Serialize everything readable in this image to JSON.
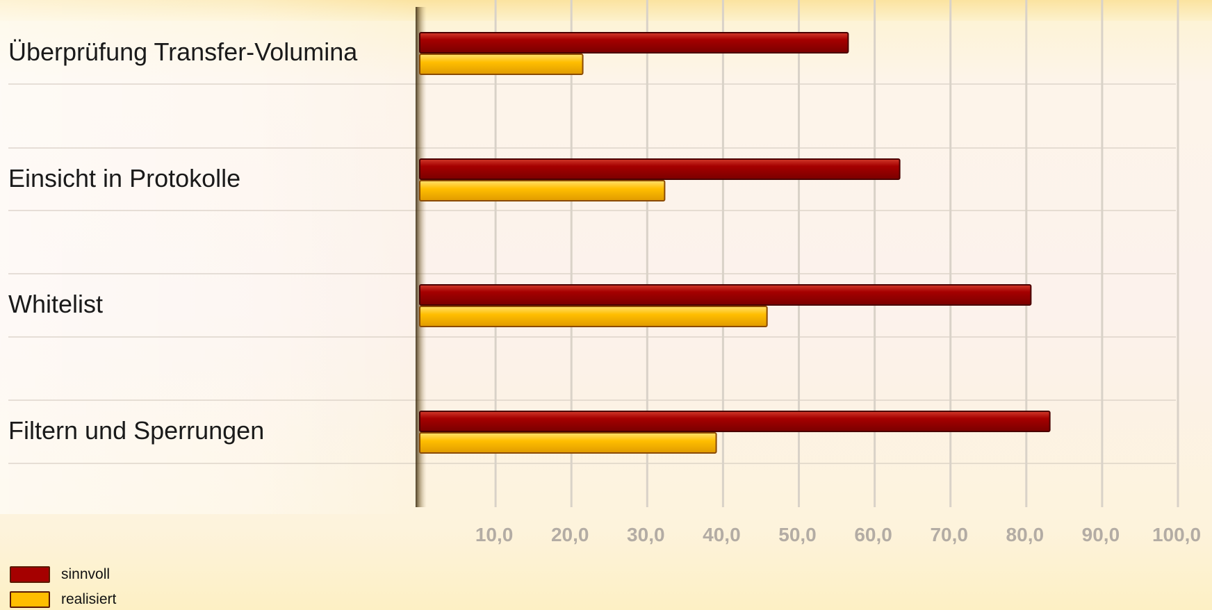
{
  "chart_data": {
    "type": "bar",
    "orientation": "horizontal",
    "categories": [
      "Überprüfung Transfer-Volumina",
      "Einsicht in Protokolle",
      "Whitelist",
      "Filtern und Sperrungen"
    ],
    "series": [
      {
        "name": "sinnvoll",
        "values": [
          56.5,
          63.3,
          80.6,
          83.1
        ],
        "color": "#a50000"
      },
      {
        "name": "realisiert",
        "values": [
          21.5,
          32.3,
          45.8,
          39.1
        ],
        "color": "#ffbe00"
      }
    ],
    "xlim": [
      0,
      100
    ],
    "x_ticks": [
      10,
      20,
      30,
      40,
      50,
      60,
      70,
      80,
      90,
      100
    ],
    "x_tick_labels": [
      "10,0",
      "20,0",
      "30,0",
      "40,0",
      "50,0",
      "60,0",
      "70,0",
      "80,0",
      "90,0",
      "100,0"
    ],
    "title": "",
    "xlabel": "",
    "ylabel": "",
    "grid": true,
    "legend_placement": "bottom-left"
  },
  "colors": {
    "sinnvoll": "#a50000",
    "realisiert": "#ffbe00",
    "tick_label": "#b3aca4",
    "grid": "#d9d2c8"
  }
}
